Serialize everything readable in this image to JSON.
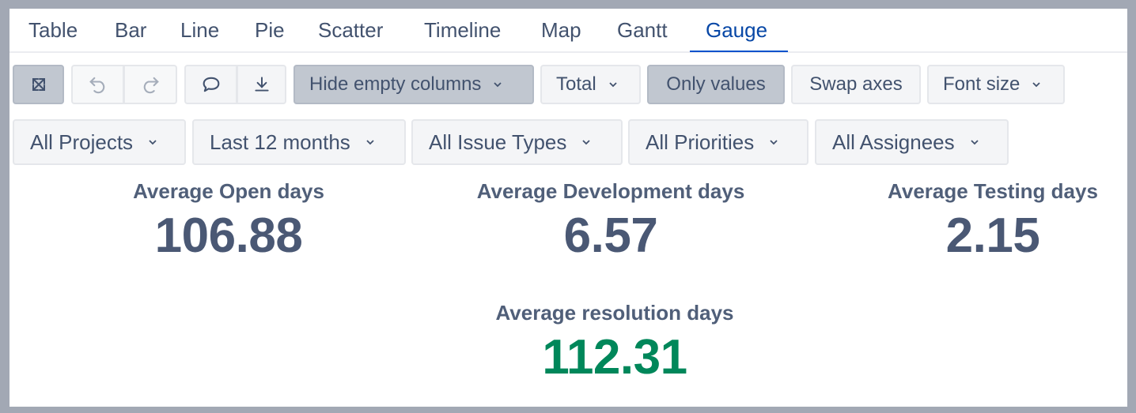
{
  "tabs": [
    {
      "label": "Table"
    },
    {
      "label": "Bar"
    },
    {
      "label": "Line"
    },
    {
      "label": "Pie"
    },
    {
      "label": "Scatter"
    },
    {
      "label": "Timeline"
    },
    {
      "label": "Map"
    },
    {
      "label": "Gantt"
    },
    {
      "label": "Gauge",
      "active": true
    }
  ],
  "toolbar": {
    "icons": [
      "fullscreen-icon",
      "undo-icon",
      "redo-icon",
      "comment-icon",
      "download-icon"
    ],
    "hide_empty_columns": "Hide empty columns",
    "total": "Total",
    "only_values": "Only values",
    "swap_axes": "Swap axes",
    "font_size": "Font size"
  },
  "filters": {
    "projects": "All Projects",
    "period": "Last 12 months",
    "issue_types": "All Issue Types",
    "priorities": "All Priorities",
    "assignees": "All Assignees"
  },
  "metrics": {
    "open": {
      "label": "Average Open days",
      "value": "106.88"
    },
    "development": {
      "label": "Average Development days",
      "value": "6.57"
    },
    "testing": {
      "label": "Average Testing days",
      "value": "2.15"
    },
    "resolution": {
      "label": "Average resolution days",
      "value": "112.31"
    }
  },
  "colors": {
    "accent": "#0052cc",
    "value": "#4a5874",
    "highlight_value": "#00875a"
  }
}
